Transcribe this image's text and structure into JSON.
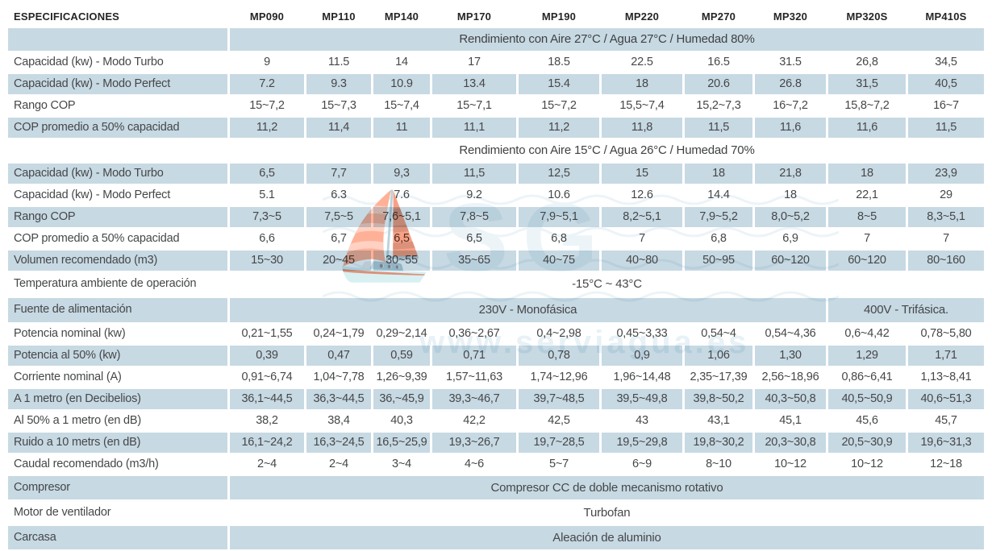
{
  "colors": {
    "row_blue": "#c7d9e3",
    "text": "#454748",
    "header_text": "#252525",
    "watermark_blue": "#d3e5ef"
  },
  "watermark": {
    "initials": "SG",
    "url_text": "www.serviagua.es"
  },
  "table": {
    "rows": [
      {
        "type": "header",
        "bg": "white",
        "label": "ESPECIFICACIONES",
        "models": [
          "MP090",
          "MP110",
          "MP140",
          "MP170",
          "MP190",
          "MP220",
          "MP270",
          "MP320",
          "MP320S",
          "MP410S"
        ]
      },
      {
        "type": "band",
        "bg": "blue",
        "text": "Rendimiento con Aire 27°C /  Agua 27°C / Humedad 80%"
      },
      {
        "type": "data",
        "bg": "white",
        "label": "Capacidad (kw) - Modo Turbo",
        "values": [
          "9",
          "11.5",
          "14",
          "17",
          "18.5",
          "22.5",
          "16.5",
          "31.5",
          "26,8",
          "34,5"
        ]
      },
      {
        "type": "data",
        "bg": "blue",
        "label": "Capacidad (kw) - Modo Perfect",
        "values": [
          "7.2",
          "9.3",
          "10.9",
          "13.4",
          "15.4",
          "18",
          "20.6",
          "26.8",
          "31,5",
          "40,5"
        ]
      },
      {
        "type": "data",
        "bg": "white",
        "label": "Rango COP",
        "values": [
          "15~7,2",
          "15~7,3",
          "15~7,4",
          "15~7,1",
          "15~7,2",
          "15,5~7,4",
          "15,2~7,3",
          "16~7,2",
          "15,8~7,2",
          "16~7"
        ]
      },
      {
        "type": "data",
        "bg": "blue",
        "label": "COP promedio a 50% capacidad",
        "values": [
          "11,2",
          "11,4",
          "11",
          "11,1",
          "11,2",
          "11,8",
          "11,5",
          "11,6",
          "11,6",
          "11,5"
        ]
      },
      {
        "type": "band",
        "bg": "white",
        "text": "Rendimiento con Aire 15°C / Agua 26°C / Humedad 70%"
      },
      {
        "type": "data",
        "bg": "blue",
        "label": "Capacidad (kw) - Modo Turbo",
        "values": [
          "6,5",
          "7,7",
          "9,3",
          "11,5",
          "12,5",
          "15",
          "18",
          "21,8",
          "18",
          "23,9"
        ]
      },
      {
        "type": "data",
        "bg": "white",
        "label": "Capacidad (kw) - Modo Perfect",
        "values": [
          "5.1",
          "6.3",
          "7.6",
          "9.2",
          "10.6",
          "12.6",
          "14.4",
          "18",
          "22,1",
          "29"
        ]
      },
      {
        "type": "data",
        "bg": "blue",
        "label": "Rango COP",
        "values": [
          "7,3~5",
          "7,5~5",
          "7,6~5,1",
          "7,8~5",
          "7,9~5,1",
          "8,2~5,1",
          "7,9~5,2",
          "8,0~5,2",
          "8~5",
          "8,3~5,1"
        ]
      },
      {
        "type": "data",
        "bg": "white",
        "label": "COP promedio a 50% capacidad",
        "values": [
          "6,6",
          "6,7",
          "6,5",
          "6,5",
          "6,8",
          "7",
          "6,8",
          "6,9",
          "7",
          "7"
        ]
      },
      {
        "type": "data",
        "bg": "blue",
        "label": "Volumen recomendado (m3)",
        "values": [
          "15~30",
          "20~45",
          "30~55",
          "35~65",
          "40~75",
          "40~80",
          "50~95",
          "60~120",
          "60~120",
          "80~160"
        ]
      },
      {
        "type": "fullspan",
        "bg": "white",
        "label": "Temperatura ambiente de operación",
        "value": "-15°C ~ 43°C"
      },
      {
        "type": "split",
        "bg": "blue",
        "label": "Fuente de alimentación",
        "left_value": "230V - Monofásica",
        "left_span": 8,
        "right_value": "400V - Trifásica.",
        "right_span": 2
      },
      {
        "type": "data",
        "bg": "white",
        "label": "Potencia nominal (kw)",
        "values": [
          "0,21~1,55",
          "0,24~1,79",
          "0,29~2,14",
          "0,36~2,67",
          "0,4~2,98",
          "0,45~3,33",
          "0,54~4",
          "0,54~4,36",
          "0,6~4,42",
          "0,78~5,80"
        ]
      },
      {
        "type": "data",
        "bg": "blue",
        "label": "Potencia al 50% (kw)",
        "values": [
          "0,39",
          "0,47",
          "0,59",
          "0,71",
          "0,78",
          "0,9",
          "1,06",
          "1,30",
          "1,29",
          "1,71"
        ]
      },
      {
        "type": "data",
        "bg": "white",
        "label": "Corriente nominal (A)",
        "values": [
          "0,91~6,74",
          "1,04~7,78",
          "1,26~9,39",
          "1,57~11,63",
          "1,74~12,96",
          "1,96~14,48",
          "2,35~17,39",
          "2,56~18,96",
          "0,86~6,41",
          "1,13~8,41"
        ]
      },
      {
        "type": "data",
        "bg": "blue",
        "label": "A 1 metro  (en Decibelios)",
        "values": [
          "36,1~44,5",
          "36,3~44,5",
          "36,~45,9",
          "39,3~46,7",
          "39,7~48,5",
          "39,5~49,8",
          "39,8~50,2",
          "40,3~50,8",
          "40,5~50,9",
          "40,6~51,3"
        ]
      },
      {
        "type": "data",
        "bg": "white",
        "label": "Al 50% a 1 metro  (en dB)",
        "values": [
          "38,2",
          "38,4",
          "40,3",
          "42,2",
          "42,5",
          "43",
          "43,1",
          "45,1",
          "45,6",
          "45,7"
        ]
      },
      {
        "type": "data",
        "bg": "blue",
        "label": "Ruido a 10 metrs  (en dB)",
        "values": [
          "16,1~24,2",
          "16,3~24,5",
          "16,5~25,9",
          "19,3~26,7",
          "19,7~28,5",
          "19,5~29,8",
          "19,8~30,2",
          "20,3~30,8",
          "20,5~30,9",
          "19,6~31,3"
        ]
      },
      {
        "type": "data",
        "bg": "white",
        "label": "Caudal recomendado (m3/h)",
        "values": [
          "2~4",
          "2~4",
          "3~4",
          "4~6",
          "5~7",
          "6~9",
          "8~10",
          "10~12",
          "10~12",
          "12~18"
        ]
      },
      {
        "type": "merged",
        "bg": "blue",
        "label": "Compresor",
        "value": "Compresor CC de doble mecanismo rotativo"
      },
      {
        "type": "merged",
        "bg": "white",
        "label": "Motor de ventilador",
        "value": "Turbofan"
      },
      {
        "type": "merged",
        "bg": "blue",
        "label": "Carcasa",
        "value": "Aleación de aluminio"
      }
    ]
  }
}
